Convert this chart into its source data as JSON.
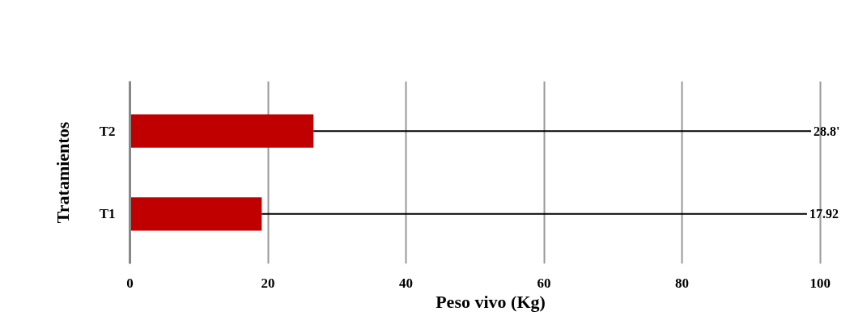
{
  "chart_data": {
    "type": "bar",
    "orientation": "horizontal",
    "xlabel": "Peso vivo (Kg)",
    "ylabel": "Tratamientos",
    "categories": [
      "T2",
      "T1"
    ],
    "values": [
      26.6,
      19.1
    ],
    "color": "#c00000",
    "errors": [
      [
        26.6,
        98.7
      ],
      [
        19.1,
        98.1
      ]
    ],
    "annotations": [
      "28.8'",
      "17.92"
    ],
    "xlim": [
      0,
      100
    ],
    "xticks": [
      0,
      20,
      40,
      60,
      80,
      100
    ],
    "grid": "x"
  }
}
